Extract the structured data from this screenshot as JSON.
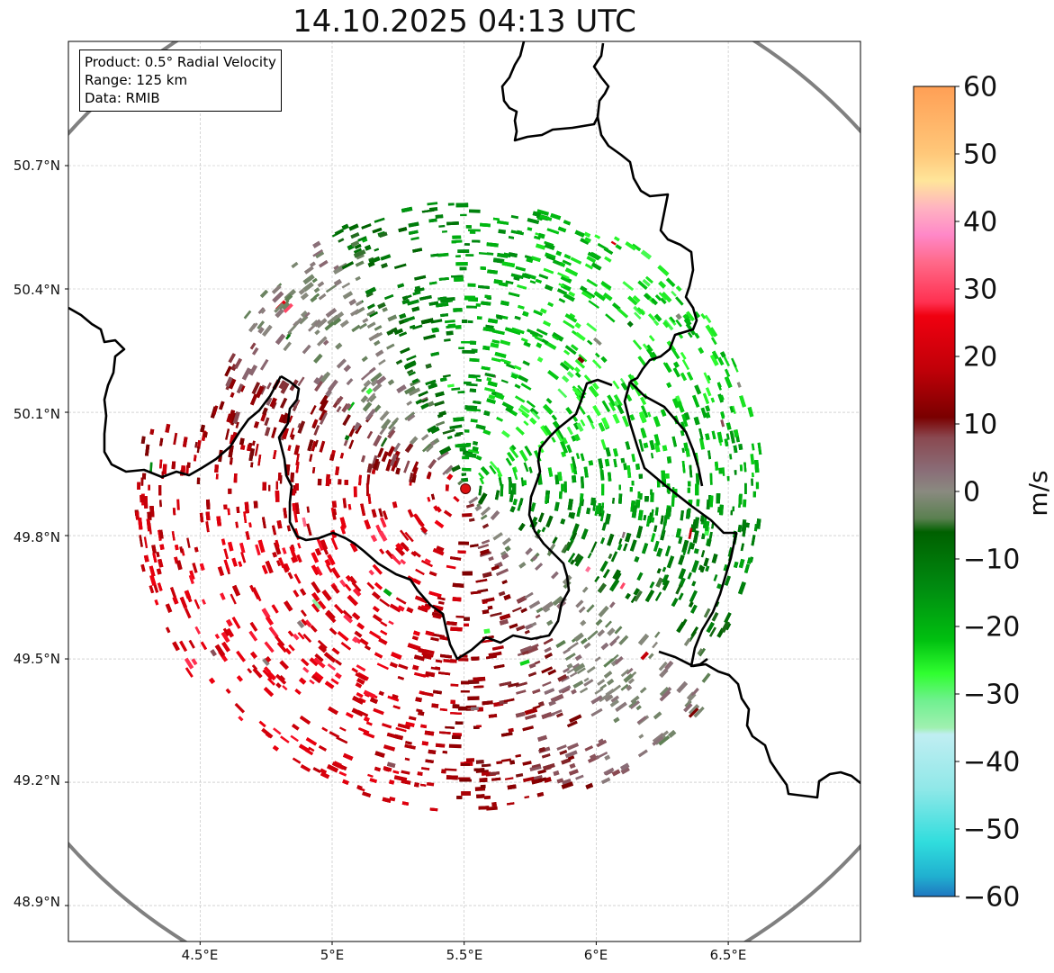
{
  "title": "14.10.2025 04:13 UTC",
  "info": {
    "product": "Product: 0.5° Radial Velocity",
    "range": "Range: 125 km",
    "source": "Data: RMIB"
  },
  "axes": {
    "lat_ticks": [
      "50.7°N",
      "50.4°N",
      "50.1°N",
      "49.8°N",
      "49.5°N",
      "49.2°N",
      "48.9°N"
    ],
    "lon_ticks": [
      "4.5°E",
      "5°E",
      "5.5°E",
      "6°E",
      "6.5°E"
    ]
  },
  "colorbar": {
    "unit": "m/s",
    "ticks": [
      "60",
      "50",
      "40",
      "30",
      "20",
      "10",
      "0",
      "−10",
      "−20",
      "−30",
      "−40",
      "−50",
      "−60"
    ],
    "range": [
      -60,
      60
    ],
    "stops": [
      {
        "v": 60,
        "color": "#ff9f55"
      },
      {
        "v": 50,
        "color": "#ffc87a"
      },
      {
        "v": 46,
        "color": "#ffe59a"
      },
      {
        "v": 42,
        "color": "#ffb3c1"
      },
      {
        "v": 38,
        "color": "#ff88c8"
      },
      {
        "v": 34,
        "color": "#ff6a8a"
      },
      {
        "v": 28,
        "color": "#ff3050"
      },
      {
        "v": 26,
        "color": "#f00010"
      },
      {
        "v": 18,
        "color": "#c00008"
      },
      {
        "v": 11,
        "color": "#7a0000"
      },
      {
        "v": 8,
        "color": "#8a4850"
      },
      {
        "v": 3,
        "color": "#8a6e78"
      },
      {
        "v": 0,
        "color": "#8a8a80"
      },
      {
        "v": -4,
        "color": "#5a8050"
      },
      {
        "v": -6,
        "color": "#006000"
      },
      {
        "v": -14,
        "color": "#008a10"
      },
      {
        "v": -22,
        "color": "#00c010"
      },
      {
        "v": -27,
        "color": "#30ff30"
      },
      {
        "v": -31,
        "color": "#70f090"
      },
      {
        "v": -35,
        "color": "#a0f0b0"
      },
      {
        "v": -36,
        "color": "#c0eef2"
      },
      {
        "v": -44,
        "color": "#90e8e8"
      },
      {
        "v": -52,
        "color": "#30dddd"
      },
      {
        "v": -57,
        "color": "#20b0d0"
      },
      {
        "v": -60,
        "color": "#1f77c0"
      }
    ]
  },
  "radar": {
    "site_lon": 5.505,
    "site_lat": 49.914,
    "range_km": 125
  },
  "colors": {
    "range_ring": "#808080",
    "border": "#000000",
    "site_marker": "#dd1111",
    "grid": "#bbbbbb"
  }
}
